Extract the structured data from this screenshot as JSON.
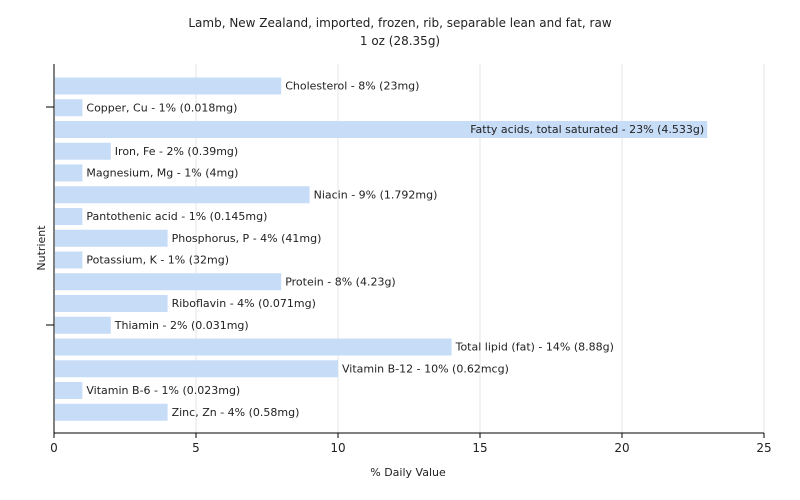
{
  "chart_data": {
    "type": "bar",
    "orientation": "horizontal",
    "title": "Lamb, New Zealand, imported, frozen, rib, separable lean and fat, raw",
    "subtitle": "1 oz (28.35g)",
    "xlabel": "% Daily Value",
    "ylabel": "Nutrient",
    "xlim": [
      0,
      25
    ],
    "xticks": [
      "0",
      "5",
      "10",
      "15",
      "20",
      "25"
    ],
    "grid": true,
    "bar_color": "#c6dcf7",
    "categories": [
      "Cholesterol",
      "Copper, Cu",
      "Fatty acids, total saturated",
      "Iron, Fe",
      "Magnesium, Mg",
      "Niacin",
      "Pantothenic acid",
      "Phosphorus, P",
      "Potassium, K",
      "Protein",
      "Riboflavin",
      "Thiamin",
      "Total lipid (fat)",
      "Vitamin B-12",
      "Vitamin B-6",
      "Zinc, Zn"
    ],
    "values": [
      8,
      1,
      23,
      2,
      1,
      9,
      1,
      4,
      1,
      8,
      4,
      2,
      14,
      10,
      1,
      4
    ],
    "labels": [
      "Cholesterol - 8% (23mg)",
      "Copper, Cu - 1% (0.018mg)",
      "Fatty acids, total saturated - 23% (4.533g)",
      "Iron, Fe - 2% (0.39mg)",
      "Magnesium, Mg - 1% (4mg)",
      "Niacin - 9% (1.792mg)",
      "Pantothenic acid - 1% (0.145mg)",
      "Phosphorus, P - 4% (41mg)",
      "Potassium, K - 1% (32mg)",
      "Protein - 8% (4.23g)",
      "Riboflavin - 4% (0.071mg)",
      "Thiamin - 2% (0.031mg)",
      "Total lipid (fat) - 14% (8.88g)",
      "Vitamin B-12 - 10% (0.62mcg)",
      "Vitamin B-6 - 1% (0.023mg)",
      "Zinc, Zn - 4% (0.58mg)"
    ]
  }
}
